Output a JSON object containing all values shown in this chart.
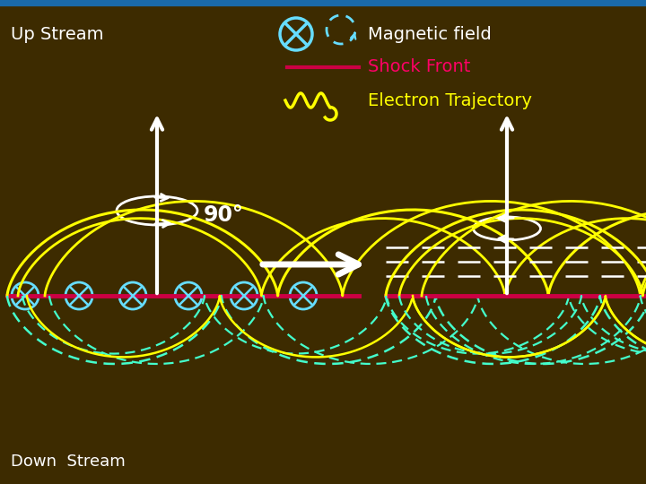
{
  "bg_color": "#3d2b00",
  "border_color": "#1a6aaa",
  "text_color_white": "#ffffff",
  "text_color_magenta": "#ff0066",
  "text_color_yellow": "#ffff00",
  "title": "Magnetic field",
  "shock_front": "Shock Front",
  "electron_traj": "Electron Trajectory",
  "up_stream": "Up Stream",
  "down_stream": "Down  Stream",
  "angle_label": "90°",
  "shock_color": "#cc0044",
  "arrow_color": "#ffffff",
  "traj_yellow": "#ffff00",
  "traj_cyan": "#44ffcc",
  "field_circle_color": "#66ddff"
}
